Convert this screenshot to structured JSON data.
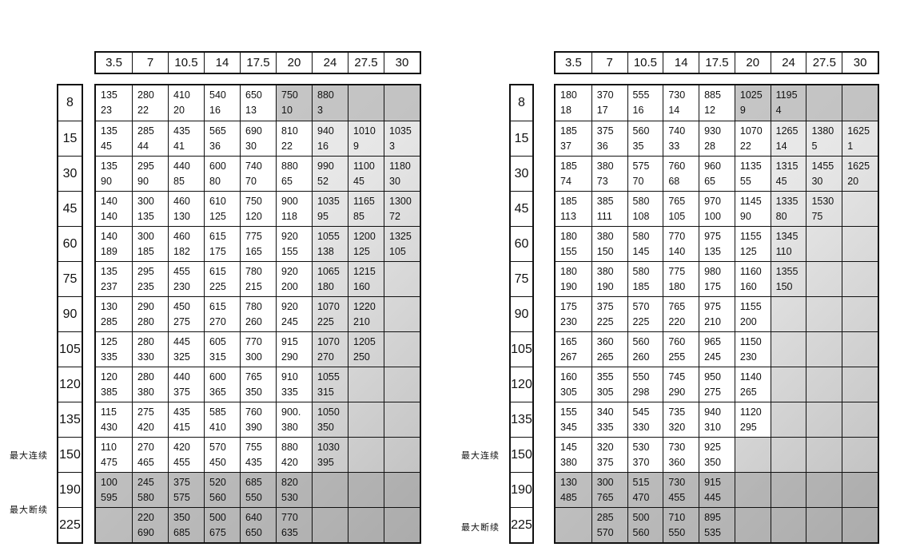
{
  "side_labels": {
    "continuous": "最大连续",
    "intermittent": "最大断续"
  },
  "tables": [
    {
      "columns": [
        "3.5",
        "7",
        "10.5",
        "14",
        "17.5",
        "20",
        "24",
        "27.5",
        "30"
      ],
      "rows": [
        "8",
        "15",
        "30",
        "45",
        "60",
        "75",
        "90",
        "105",
        "120",
        "135",
        "150",
        "190",
        "225"
      ],
      "cells": [
        [
          [
            "135",
            "23"
          ],
          [
            "280",
            "22"
          ],
          [
            "410",
            "20"
          ],
          [
            "540",
            "16"
          ],
          [
            "650",
            "13"
          ],
          [
            "750",
            "10"
          ],
          [
            "880",
            "3"
          ],
          null,
          null
        ],
        [
          [
            "135",
            "45"
          ],
          [
            "285",
            "44"
          ],
          [
            "435",
            "41"
          ],
          [
            "565",
            "36"
          ],
          [
            "690",
            "30"
          ],
          [
            "810",
            "22"
          ],
          [
            "940",
            "16"
          ],
          [
            "1010",
            "9"
          ],
          [
            "1035",
            "3"
          ]
        ],
        [
          [
            "135",
            "90"
          ],
          [
            "295",
            "90"
          ],
          [
            "440",
            "85"
          ],
          [
            "600",
            "80"
          ],
          [
            "740",
            "70"
          ],
          [
            "880",
            "65"
          ],
          [
            "990",
            "52"
          ],
          [
            "1100",
            "45"
          ],
          [
            "1180",
            "30"
          ]
        ],
        [
          [
            "140",
            "140"
          ],
          [
            "300",
            "135"
          ],
          [
            "460",
            "130"
          ],
          [
            "610",
            "125"
          ],
          [
            "750",
            "120"
          ],
          [
            "900",
            "118"
          ],
          [
            "1035",
            "95"
          ],
          [
            "1165",
            "85"
          ],
          [
            "1300",
            "72"
          ]
        ],
        [
          [
            "140",
            "189"
          ],
          [
            "300",
            "185"
          ],
          [
            "460",
            "182"
          ],
          [
            "615",
            "175"
          ],
          [
            "775",
            "165"
          ],
          [
            "920",
            "155"
          ],
          [
            "1055",
            "138"
          ],
          [
            "1200",
            "125"
          ],
          [
            "1325",
            "105"
          ]
        ],
        [
          [
            "135",
            "237"
          ],
          [
            "295",
            "235"
          ],
          [
            "455",
            "230"
          ],
          [
            "615",
            "225"
          ],
          [
            "780",
            "215"
          ],
          [
            "920",
            "200"
          ],
          [
            "1065",
            "180"
          ],
          [
            "1215",
            "160"
          ],
          null
        ],
        [
          [
            "130",
            "285"
          ],
          [
            "290",
            "280"
          ],
          [
            "450",
            "275"
          ],
          [
            "615",
            "270"
          ],
          [
            "780",
            "260"
          ],
          [
            "920",
            "245"
          ],
          [
            "1070",
            "225"
          ],
          [
            "1220",
            "210"
          ],
          null
        ],
        [
          [
            "125",
            "335"
          ],
          [
            "280",
            "330"
          ],
          [
            "445",
            "325"
          ],
          [
            "605",
            "315"
          ],
          [
            "770",
            "300"
          ],
          [
            "915",
            "290"
          ],
          [
            "1070",
            "270"
          ],
          [
            "1205",
            "250"
          ],
          null
        ],
        [
          [
            "120",
            "385"
          ],
          [
            "280",
            "380"
          ],
          [
            "440",
            "375"
          ],
          [
            "600",
            "365"
          ],
          [
            "765",
            "350"
          ],
          [
            "910",
            "335"
          ],
          [
            "1055",
            "315"
          ],
          null,
          null
        ],
        [
          [
            "115",
            "430"
          ],
          [
            "275",
            "420"
          ],
          [
            "435",
            "415"
          ],
          [
            "585",
            "410"
          ],
          [
            "760",
            "390"
          ],
          [
            "900.",
            "380"
          ],
          [
            "1050",
            "350"
          ],
          null,
          null
        ],
        [
          [
            "110",
            "475"
          ],
          [
            "270",
            "465"
          ],
          [
            "420",
            "455"
          ],
          [
            "570",
            "450"
          ],
          [
            "755",
            "435"
          ],
          [
            "880",
            "420"
          ],
          [
            "1030",
            "395"
          ],
          null,
          null
        ],
        [
          [
            "100",
            "595"
          ],
          [
            "245",
            "580"
          ],
          [
            "375",
            "575"
          ],
          [
            "520",
            "560"
          ],
          [
            "685",
            "550"
          ],
          [
            "820",
            "530"
          ],
          null,
          null,
          null
        ],
        [
          null,
          [
            "220",
            "690"
          ],
          [
            "350",
            "685"
          ],
          [
            "500",
            "675"
          ],
          [
            "640",
            "650"
          ],
          [
            "770",
            "635"
          ],
          null,
          null,
          null
        ]
      ]
    },
    {
      "columns": [
        "3.5",
        "7",
        "10.5",
        "14",
        "17.5",
        "20",
        "24",
        "27.5",
        "30"
      ],
      "rows": [
        "8",
        "15",
        "30",
        "45",
        "60",
        "75",
        "90",
        "105",
        "120",
        "135",
        "150",
        "190",
        "225"
      ],
      "cells": [
        [
          [
            "180",
            "18"
          ],
          [
            "370",
            "17"
          ],
          [
            "555",
            "16"
          ],
          [
            "730",
            "14"
          ],
          [
            "885",
            "12"
          ],
          [
            "1025",
            "9"
          ],
          [
            "1195",
            "4"
          ],
          null,
          null
        ],
        [
          [
            "185",
            "37"
          ],
          [
            "375",
            "36"
          ],
          [
            "560",
            "35"
          ],
          [
            "740",
            "33"
          ],
          [
            "930",
            "28"
          ],
          [
            "1070",
            "22"
          ],
          [
            "1265",
            "14"
          ],
          [
            "1380",
            "5"
          ],
          [
            "1625",
            "1"
          ]
        ],
        [
          [
            "185",
            "74"
          ],
          [
            "380",
            "73"
          ],
          [
            "575",
            "70"
          ],
          [
            "760",
            "68"
          ],
          [
            "960",
            "65"
          ],
          [
            "1135",
            "55"
          ],
          [
            "1315",
            "45"
          ],
          [
            "1455",
            "30"
          ],
          [
            "1625",
            "20"
          ]
        ],
        [
          [
            "185",
            "113"
          ],
          [
            "385",
            "111"
          ],
          [
            "580",
            "108"
          ],
          [
            "765",
            "105"
          ],
          [
            "970",
            "100"
          ],
          [
            "1145",
            "90"
          ],
          [
            "1335",
            "80"
          ],
          [
            "1530",
            "75"
          ],
          null
        ],
        [
          [
            "180",
            "155"
          ],
          [
            "380",
            "150"
          ],
          [
            "580",
            "145"
          ],
          [
            "770",
            "140"
          ],
          [
            "975",
            "135"
          ],
          [
            "1155",
            "125"
          ],
          [
            "1345",
            "110"
          ],
          null,
          null
        ],
        [
          [
            "180",
            "190"
          ],
          [
            "380",
            "190"
          ],
          [
            "580",
            "185"
          ],
          [
            "775",
            "180"
          ],
          [
            "980",
            "175"
          ],
          [
            "1160",
            "160"
          ],
          [
            "1355",
            "150"
          ],
          null,
          null
        ],
        [
          [
            "175",
            "230"
          ],
          [
            "375",
            "225"
          ],
          [
            "570",
            "225"
          ],
          [
            "765",
            "220"
          ],
          [
            "975",
            "210"
          ],
          [
            "1155",
            "200"
          ],
          null,
          null,
          null
        ],
        [
          [
            "165",
            "267"
          ],
          [
            "360",
            "265"
          ],
          [
            "560",
            "260"
          ],
          [
            "760",
            "255"
          ],
          [
            "965",
            "245"
          ],
          [
            "1150",
            "230"
          ],
          null,
          null,
          null
        ],
        [
          [
            "160",
            "305"
          ],
          [
            "355",
            "305"
          ],
          [
            "550",
            "298"
          ],
          [
            "745",
            "290"
          ],
          [
            "950",
            "275"
          ],
          [
            "1140",
            "265"
          ],
          null,
          null,
          null
        ],
        [
          [
            "155",
            "345"
          ],
          [
            "340",
            "335"
          ],
          [
            "545",
            "330"
          ],
          [
            "735",
            "320"
          ],
          [
            "940",
            "310"
          ],
          [
            "1120",
            "295"
          ],
          null,
          null,
          null
        ],
        [
          [
            "145",
            "380"
          ],
          [
            "320",
            "375"
          ],
          [
            "530",
            "370"
          ],
          [
            "730",
            "360"
          ],
          [
            "925",
            "350"
          ],
          null,
          null,
          null,
          null
        ],
        [
          [
            "130",
            "485"
          ],
          [
            "300",
            "765"
          ],
          [
            "515",
            "470"
          ],
          [
            "730",
            "455"
          ],
          [
            "915",
            "445"
          ],
          null,
          null,
          null,
          null
        ],
        [
          null,
          [
            "285",
            "570"
          ],
          [
            "500",
            "560"
          ],
          [
            "710",
            "550"
          ],
          [
            "895",
            "535"
          ],
          null,
          null,
          null,
          null
        ]
      ]
    }
  ]
}
